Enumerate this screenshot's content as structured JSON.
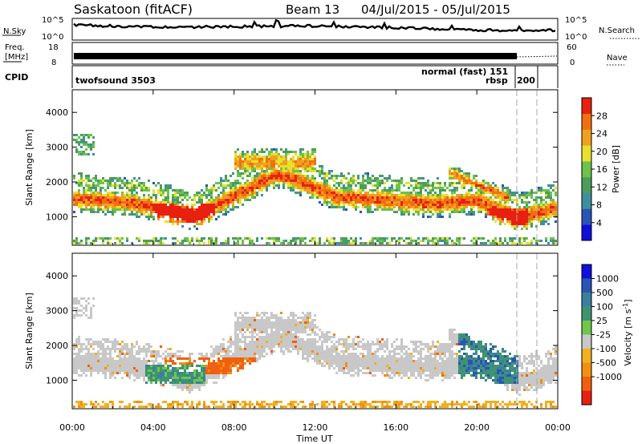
{
  "header": {
    "station": "Saskatoon (fitACF)",
    "beam": "Beam 13",
    "date_range": "04/Jul/2015 - 05/Jul/2015"
  },
  "noise_panel": {
    "left_label": "N.Sky",
    "right_label": "N.Search",
    "left_ticks": [
      "10^5",
      "10^0"
    ],
    "right_ticks": [
      "10^5",
      "10^0"
    ]
  },
  "freq_panel": {
    "left_label_1": "Freq.",
    "left_label_2": "[MHz]",
    "left_ticks": [
      "18",
      "8"
    ],
    "right_label": "Nave",
    "right_ticks": [
      "60",
      "0"
    ]
  },
  "cpid_panel": {
    "label": "CPID",
    "left_mode": "twofsound 3503",
    "mode_normal": "normal (fast) 151",
    "mode_rbsp": "rbsp",
    "mode_200": "200"
  },
  "colors": {
    "power": [
      "#1010dd",
      "#2a55b5",
      "#3f8ea0",
      "#4d9d5a",
      "#6cc24a",
      "#e8e02c",
      "#f0a020",
      "#f07010",
      "#e82010"
    ],
    "velocity": [
      "#1010dd",
      "#2a55b5",
      "#3a7fa0",
      "#3f9470",
      "#6cc84a",
      "#c8c8c8",
      "#f0b020",
      "#f09010",
      "#f06010",
      "#e82010"
    ]
  },
  "chart_data": [
    {
      "type": "heatmap",
      "title": "Power",
      "ylabel": "Slant Range [km]",
      "xlabel": "Time UT",
      "x_ticks": [
        "00:00",
        "04:00",
        "08:00",
        "12:00",
        "16:00",
        "20:00",
        "00:00"
      ],
      "x_range_hours": [
        0,
        24
      ],
      "ylim": [
        180,
        4650
      ],
      "y_ticks": [
        1000,
        2000,
        3000,
        4000
      ],
      "colorbar": {
        "label": "Power [dB]",
        "range": [
          0,
          32
        ],
        "ticks": [
          "4",
          "8",
          "12",
          "16",
          "20",
          "24",
          "28"
        ]
      }
    },
    {
      "type": "heatmap",
      "title": "Velocity",
      "ylabel": "Slant Range [km]",
      "xlabel": "Time UT",
      "x_ticks": [
        "00:00",
        "04:00",
        "08:00",
        "12:00",
        "16:00",
        "20:00",
        "00:00"
      ],
      "x_range_hours": [
        0,
        24
      ],
      "ylim": [
        180,
        4650
      ],
      "y_ticks": [
        1000,
        2000,
        3000,
        4000
      ],
      "colorbar": {
        "label": "Velocity [m s^-1]",
        "ticks": [
          "1000",
          "500",
          "100",
          "25",
          "-25",
          "-100",
          "-500",
          "-1000"
        ]
      }
    }
  ]
}
